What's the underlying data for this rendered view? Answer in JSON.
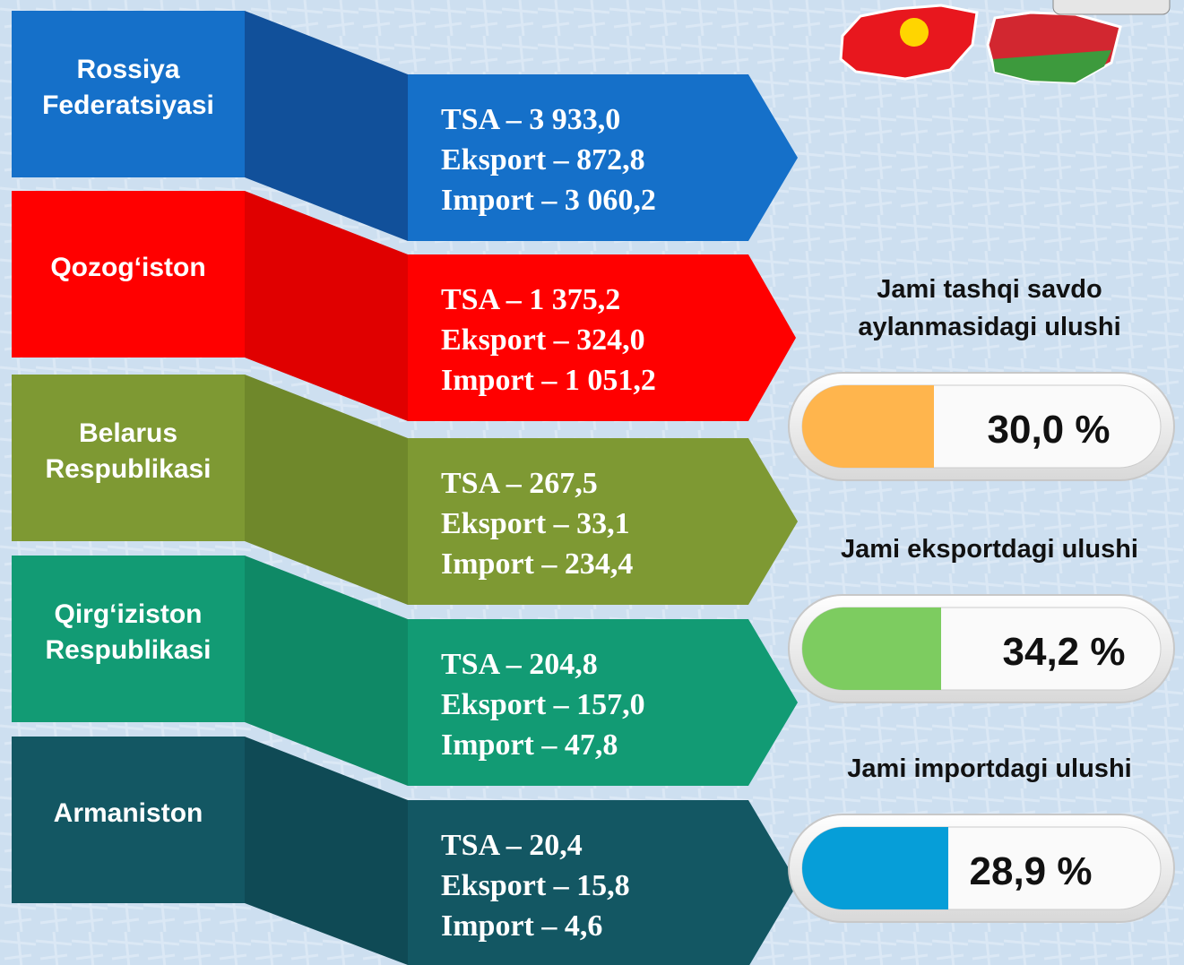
{
  "countries": [
    {
      "name": [
        "Rossiya",
        "Federatsiyasi"
      ],
      "stats": [
        "TSA – 3 933,0",
        "Eksport – 872,8",
        "Import – 3 060,2"
      ],
      "color": "#1570c9",
      "shade": "#11509a"
    },
    {
      "name": [
        "Qozog‘iston"
      ],
      "stats": [
        "TSA – 1 375,2",
        "Eksport – 324,0",
        "Import – 1 051,2"
      ],
      "color": "#ff0000",
      "shade": "#e00000"
    },
    {
      "name": [
        "Belarus",
        "Respublikasi"
      ],
      "stats": [
        "TSA – 267,5",
        "Eksport – 33,1",
        "Import – 234,4"
      ],
      "color": "#7e9933",
      "shade": "#6f882b"
    },
    {
      "name": [
        "Qirg‘iziston",
        "Respublikasi"
      ],
      "stats": [
        "TSA – 204,8",
        "Eksport – 157,0",
        "Import – 47,8"
      ],
      "color": "#129b74",
      "shade": "#0f8966"
    },
    {
      "name": [
        "Armaniston"
      ],
      "stats": [
        "TSA – 20,4",
        "Eksport – 15,8",
        "Import – 4,6"
      ],
      "color": "#135763",
      "shade": "#0f4a55"
    }
  ],
  "shares": [
    {
      "title": [
        "Jami tashqi savdo",
        "aylanmasidagi ulushi"
      ],
      "value": "30,0 %",
      "color": "#ffb54d"
    },
    {
      "title": [
        "Jami eksportdagi ulushi"
      ],
      "value": "34,2 %",
      "color": "#7dcc60"
    },
    {
      "title": [
        "Jami importdagi ulushi"
      ],
      "value": "28,9 %",
      "color": "#069ed8"
    }
  ]
}
